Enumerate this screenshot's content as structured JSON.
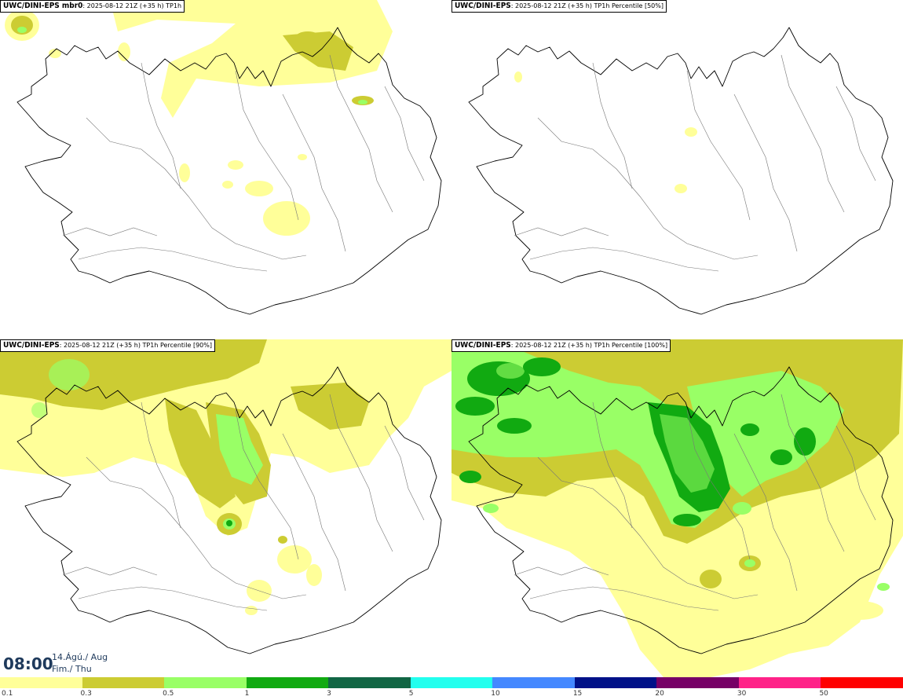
{
  "panels": [
    {
      "model": "UWC/DINI-EPS mbr0",
      "desc": ": 2025-08-12 21Z (+35 h) TP1h"
    },
    {
      "model": "UWC/DINI-EPS",
      "desc": ": 2025-08-12 21Z (+35 h) TP1h Percentile [50%]"
    },
    {
      "model": "UWC/DINI-EPS",
      "desc": ": 2025-08-12 21Z (+35 h) TP1h Percentile [90%]"
    },
    {
      "model": "UWC/DINI-EPS",
      "desc": ": 2025-08-12 21Z (+35 h) TP1h Percentile [100%]"
    }
  ],
  "time": {
    "hour": "08:00",
    "date_line1": "14.Ágú./ Aug",
    "date_line2": "Fim./ Thu"
  },
  "legend": {
    "labels": [
      "0.1",
      "0.3",
      "0.5",
      "1",
      "3",
      "5",
      "10",
      "15",
      "20",
      "30",
      "50"
    ],
    "colors": [
      "#ffff99",
      "#cccc33",
      "#99ff66",
      "#11aa11",
      "#116644",
      "#22ffee",
      "#4488ff",
      "#001188",
      "#770066",
      "#ff2288",
      "#ff0000"
    ]
  }
}
